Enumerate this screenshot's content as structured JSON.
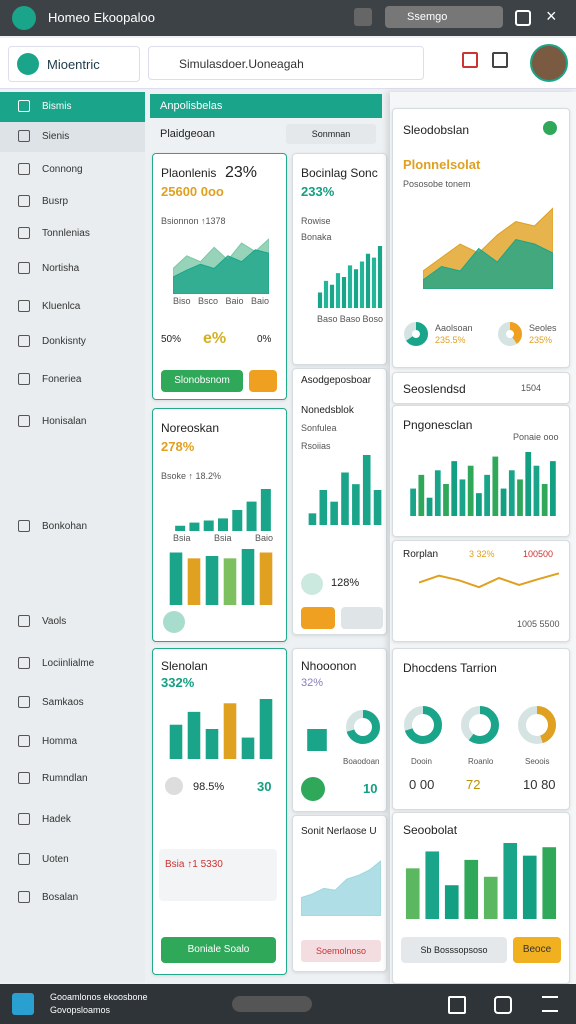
{
  "topbar": {
    "title": "Homeo Ekoopaloo",
    "search": "Ssemgo"
  },
  "header": {
    "brand": "Mioentric",
    "search": "Simulasdoer.Uoneagah"
  },
  "sidebar": {
    "items": [
      "Bismis",
      "Sienis",
      "Connong",
      "Busrp",
      "Tonnlenias",
      "Nortisha",
      "Kluenlca",
      "Donkisnty",
      "Foneriea",
      "Honisalan",
      "Bonkohan",
      "Vaols",
      "Lociinlialme",
      "Samkaos",
      "Homma",
      "Rumndlan",
      "Hadek",
      "Uoten",
      "Bosalan"
    ]
  },
  "tabs": {
    "section": "Anpolisbelas",
    "tab": "Plaidgeoan",
    "filter": "Sonmnan"
  },
  "cards": [
    {
      "title": "Plaonlenis",
      "value": "23%",
      "sub": "25600 0oo",
      "caption": "Bsionnon ↑1378",
      "s1": [
        30,
        45,
        38,
        55,
        40,
        60,
        50,
        65
      ],
      "s2": [
        20,
        28,
        35,
        30,
        45,
        38,
        52,
        48
      ],
      "xlabels": [
        "Biso",
        "Bsco",
        "Baio",
        "Baio"
      ],
      "stats": [
        "50%",
        "e%",
        "0%"
      ],
      "button": "Slonobsnom"
    },
    {
      "title": "Bocinlag Sonc",
      "value": "233%",
      "sub": "Rowise",
      "caption": "Bonaka",
      "bars": [
        20,
        35,
        30,
        45,
        40,
        55,
        50,
        60,
        70,
        65,
        80
      ],
      "xlabels": [
        "Baso",
        "Baso",
        "Boso"
      ]
    },
    {
      "title": "Noreoskan",
      "value": "278%",
      "caption": "Bsoke ↑ 18.2%",
      "bars": [
        5,
        8,
        10,
        12,
        20,
        28,
        40
      ],
      "bars2": [
        45,
        40,
        42,
        40,
        48,
        45
      ],
      "xlabels": [
        "Bsia",
        "Bsia",
        "Baio"
      ]
    },
    {
      "title": "Asodgeposboar",
      "sub": "Nonedsblok",
      "caption": "Sonfulea",
      "label": "Rsoiias",
      "bars": [
        10,
        30,
        20,
        45,
        35,
        60,
        30
      ],
      "stat": "128%"
    },
    {
      "title": "Slenolan",
      "value": "332%",
      "bars": [
        40,
        55,
        35,
        65,
        25,
        70
      ],
      "stats": [
        "98.5%",
        "30"
      ],
      "caption": "Bsia ↑1 5330",
      "button": "Boniale Soalo"
    },
    {
      "title": "Nhooonon",
      "value": "32%",
      "donuts": [
        70,
        55
      ],
      "caption": "Boaodoan",
      "stat": "10"
    },
    {
      "title": "Sonit Nerlaose U",
      "area": [
        10,
        12,
        15,
        14,
        20,
        22,
        25,
        30
      ],
      "caption": "Soemolnoso"
    }
  ],
  "panel": [
    {
      "title": "Sleodobslan",
      "heading": "Plonnelsolat",
      "sub": "Pososobe tonem",
      "area": [
        20,
        35,
        50,
        40,
        60,
        75,
        70,
        90
      ],
      "area2": [
        10,
        25,
        20,
        45,
        30,
        55,
        50,
        40
      ],
      "donuts": [
        65,
        40
      ],
      "labels": [
        "Aaolsoan",
        "Seoles"
      ],
      "stats": [
        "235.5%",
        "235%"
      ]
    },
    {
      "title": "Seoslendsd",
      "value": "1504"
    },
    {
      "title": "Pngonesclan",
      "sub": "Ponaie ooo",
      "bars": [
        30,
        45,
        20,
        50,
        35,
        60,
        40,
        55,
        25,
        45,
        65,
        30,
        50,
        40,
        70,
        55,
        35,
        60
      ]
    },
    {
      "title": "Rorplan",
      "value": "3 32%",
      "stat": "100500",
      "line": [
        40,
        55,
        45,
        30,
        50,
        35,
        48,
        60
      ],
      "caption": "1005 5500"
    },
    {
      "title": "Dhocdens Tarrion",
      "donuts": [
        70,
        60,
        45
      ],
      "labels": [
        "Dooin",
        "Roanlo",
        "Seoois"
      ],
      "stats": [
        "0 00",
        "72",
        "10 80"
      ]
    },
    {
      "title": "Seoobolat",
      "bars": [
        60,
        80,
        40,
        70,
        50,
        90,
        75,
        85
      ],
      "input": "Sb Bosssopsoso",
      "button": "Beoce"
    }
  ],
  "footer": {
    "line1": "Gooamlonos ekoosbone",
    "line2": "Govopsloamos"
  }
}
